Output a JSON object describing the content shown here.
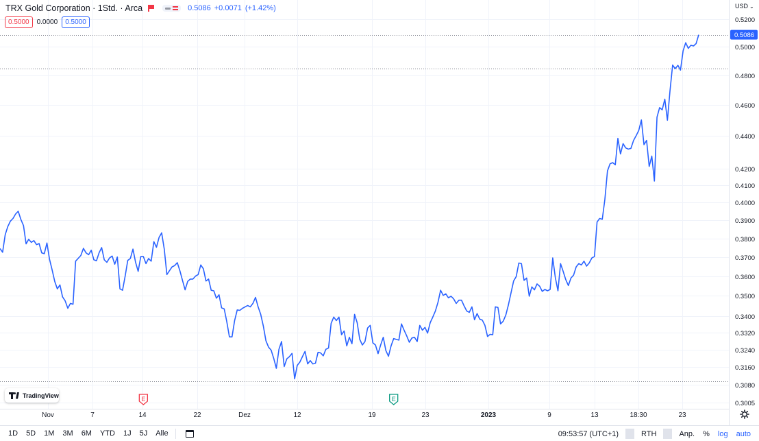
{
  "header": {
    "title": "TRX Gold Corporation · 1Std. · Arca",
    "price": "0.5086",
    "change": "+0.0071",
    "change_pct": "(+1.42%)"
  },
  "ohlc": {
    "left_box": "0.5000",
    "middle": "0.0000",
    "right_box": "0.5000"
  },
  "currency": "USD",
  "currency_chevron": "⌄",
  "watermark": "TradingView",
  "colors": {
    "line": "#2962ff",
    "grid": "#f0f3fa",
    "price_label_bg": "#2962ff",
    "earnings_red": "#f23645",
    "earnings_green": "#089981"
  },
  "chart_data": {
    "type": "line",
    "y_scale": "log",
    "ylim": [
      0.2995,
      0.5262
    ],
    "y_ticks": [
      "0.5200",
      "0.5000",
      "0.4800",
      "0.4600",
      "0.4400",
      "0.4200",
      "0.4100",
      "0.4000",
      "0.3900",
      "0.3800",
      "0.3700",
      "0.3600",
      "0.3500",
      "0.3400",
      "0.3320",
      "0.3240",
      "0.3160",
      "0.3080",
      "0.3005"
    ],
    "x_ticks": [
      "Nov",
      "7",
      "14",
      "22",
      "Dez",
      "12",
      "19",
      "23",
      "2023",
      "9",
      "13",
      "18:30",
      "23"
    ],
    "x_tick_bold": "2023",
    "last_price_label": "0.5086",
    "hlines": [
      0.5086,
      0.4845,
      0.3098
    ],
    "earnings_markers": [
      {
        "label": "E",
        "color": "red",
        "x_index": 55
      },
      {
        "label": "E",
        "color": "green",
        "x_index": 151
      }
    ],
    "series": [
      {
        "values": [
          0.3745,
          0.3725,
          0.382,
          0.3865,
          0.3895,
          0.391,
          0.3935,
          0.395,
          0.3905,
          0.387,
          0.377,
          0.3795,
          0.3778,
          0.3788,
          0.3766,
          0.3772,
          0.3722,
          0.3718,
          0.3775,
          0.3688,
          0.3632,
          0.3573,
          0.3535,
          0.3555,
          0.3495,
          0.3475,
          0.3438,
          0.3462,
          0.3458,
          0.3678,
          0.3693,
          0.3708,
          0.3746,
          0.3722,
          0.3712,
          0.3736,
          0.3685,
          0.368,
          0.3722,
          0.375,
          0.3685,
          0.3672,
          0.3695,
          0.3705,
          0.3662,
          0.37,
          0.3535,
          0.3528,
          0.36,
          0.3682,
          0.3692,
          0.3742,
          0.3672,
          0.3625,
          0.3702,
          0.3702,
          0.3665,
          0.3692,
          0.3678,
          0.3782,
          0.3752,
          0.3805,
          0.383,
          0.3742,
          0.3608,
          0.3628,
          0.3648,
          0.3655,
          0.367,
          0.3628,
          0.3578,
          0.353,
          0.3573,
          0.3585,
          0.3585,
          0.36,
          0.3608,
          0.3658,
          0.3638,
          0.3575,
          0.3585,
          0.3528,
          0.3525,
          0.3488,
          0.3505,
          0.344,
          0.3435,
          0.3372,
          0.33,
          0.33,
          0.3378,
          0.343,
          0.3428,
          0.3438,
          0.3445,
          0.3452,
          0.3445,
          0.3462,
          0.3492,
          0.3445,
          0.3408,
          0.3352,
          0.3282,
          0.3252,
          0.3238,
          0.32,
          0.3155,
          0.3242,
          0.3278,
          0.3163,
          0.3198,
          0.3208,
          0.3223,
          0.3108,
          0.3168,
          0.3183,
          0.3208,
          0.3232,
          0.3175,
          0.319,
          0.3175,
          0.3178,
          0.3228,
          0.3225,
          0.3212,
          0.3242,
          0.3248,
          0.3365,
          0.3395,
          0.3378,
          0.3395,
          0.331,
          0.3328,
          0.3258,
          0.3298,
          0.3268,
          0.3408,
          0.3368,
          0.3288,
          0.3262,
          0.3278,
          0.3342,
          0.3355,
          0.3272,
          0.3262,
          0.3222,
          0.3262,
          0.3298,
          0.3236,
          0.321,
          0.3258,
          0.3292,
          0.3288,
          0.3285,
          0.3362,
          0.3332,
          0.3305,
          0.3275,
          0.3295,
          0.3298,
          0.3278,
          0.3355,
          0.3332,
          0.3345,
          0.3318,
          0.3368,
          0.3395,
          0.3425,
          0.3468,
          0.3528,
          0.3502,
          0.351,
          0.349,
          0.3498,
          0.3485,
          0.3462,
          0.3478,
          0.3478,
          0.345,
          0.3425,
          0.3418,
          0.3445,
          0.3382,
          0.3412,
          0.3385,
          0.338,
          0.3355,
          0.3302,
          0.3312,
          0.331,
          0.3445,
          0.3442,
          0.3362,
          0.3375,
          0.3405,
          0.3455,
          0.3515,
          0.3575,
          0.3598,
          0.3668,
          0.3665,
          0.3578,
          0.359,
          0.3498,
          0.3545,
          0.353,
          0.356,
          0.3548,
          0.3522,
          0.3532,
          0.3525,
          0.3532,
          0.3695,
          0.3592,
          0.3525,
          0.3665,
          0.3625,
          0.3582,
          0.3552,
          0.359,
          0.3605,
          0.3648,
          0.3665,
          0.3658,
          0.3678,
          0.3652,
          0.3668,
          0.3695,
          0.3702,
          0.389,
          0.391,
          0.3905,
          0.4018,
          0.4185,
          0.4228,
          0.4235,
          0.4222,
          0.4385,
          0.4288,
          0.4352,
          0.4325,
          0.4318,
          0.4322,
          0.4372,
          0.4402,
          0.4435,
          0.4502,
          0.4345,
          0.4372,
          0.4212,
          0.4275,
          0.4125,
          0.452,
          0.4582,
          0.4568,
          0.4638,
          0.45,
          0.4695,
          0.487,
          0.4845,
          0.4868,
          0.4835,
          0.497,
          0.5028,
          0.4988,
          0.501,
          0.5005,
          0.5022,
          0.5086
        ]
      }
    ]
  },
  "toolbar": {
    "ranges": [
      "1D",
      "5D",
      "1M",
      "3M",
      "6M",
      "YTD",
      "1J",
      "5J",
      "Alle"
    ],
    "calendar_icon": "calendar-icon",
    "time": "09:53:57 (UTC+1)",
    "session": "RTH",
    "adjust": "Anp.",
    "percent": "%",
    "log": "log",
    "auto": "auto"
  }
}
